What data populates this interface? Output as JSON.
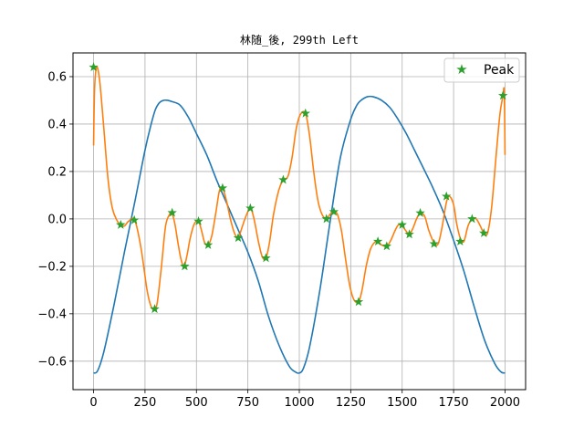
{
  "chart_data": {
    "type": "line",
    "title": "林随_後, 299th Left",
    "xlabel": "",
    "ylabel": "",
    "xlim": [
      -100,
      2100
    ],
    "ylim": [
      -0.72,
      0.7
    ],
    "xticks": [
      0,
      250,
      500,
      750,
      1000,
      1250,
      1500,
      1750,
      2000
    ],
    "yticks": [
      -0.6,
      -0.4,
      -0.2,
      0.0,
      0.2,
      0.4,
      0.6
    ],
    "xtick_labels": [
      "0",
      "250",
      "500",
      "750",
      "1000",
      "1250",
      "1500",
      "1750",
      "2000"
    ],
    "ytick_labels": [
      "−0.6",
      "−0.4",
      "−0.2",
      "0.0",
      "0.2",
      "0.4",
      "0.6"
    ],
    "grid": true,
    "legend": {
      "location": "upper right",
      "entries": [
        "Peak"
      ]
    },
    "colors": {
      "blue": "#1f77b4",
      "orange": "#ff7f0e",
      "green": "#2ca02c"
    },
    "series": [
      {
        "color": "#1f77b4",
        "x": [
          0,
          20,
          50,
          100,
          150,
          200,
          250,
          280,
          300,
          320,
          340,
          360,
          380,
          420,
          460,
          500,
          550,
          600,
          650,
          700,
          750,
          800,
          850,
          900,
          950,
          980,
          1000,
          1020,
          1050,
          1100,
          1150,
          1200,
          1250,
          1280,
          1300,
          1330,
          1360,
          1400,
          1440,
          1480,
          1520,
          1560,
          1600,
          1650,
          1700,
          1750,
          1800,
          1850,
          1900,
          1950,
          1980,
          2000
        ],
        "y": [
          -0.65,
          -0.64,
          -0.56,
          -0.36,
          -0.14,
          0.07,
          0.29,
          0.4,
          0.46,
          0.49,
          0.5,
          0.5,
          0.495,
          0.48,
          0.43,
          0.36,
          0.27,
          0.16,
          0.06,
          -0.04,
          -0.14,
          -0.26,
          -0.41,
          -0.53,
          -0.62,
          -0.645,
          -0.65,
          -0.63,
          -0.54,
          -0.3,
          -0.01,
          0.26,
          0.42,
          0.48,
          0.5,
          0.515,
          0.515,
          0.5,
          0.47,
          0.42,
          0.36,
          0.29,
          0.22,
          0.13,
          0.03,
          -0.09,
          -0.22,
          -0.37,
          -0.51,
          -0.61,
          -0.645,
          -0.65
        ]
      },
      {
        "color": "#ff7f0e",
        "x": [
          0,
          5,
          15,
          30,
          50,
          70,
          90,
          110,
          130,
          150,
          170,
          200,
          230,
          260,
          280,
          297,
          310,
          330,
          350,
          370,
          380,
          395,
          410,
          425,
          440,
          455,
          470,
          490,
          510,
          525,
          540,
          557,
          575,
          595,
          612,
          627,
          645,
          665,
          685,
          703,
          720,
          740,
          762,
          780,
          800,
          820,
          838,
          855,
          875,
          900,
          922,
          945,
          965,
          985,
          1005,
          1030,
          1050,
          1070,
          1090,
          1110,
          1132,
          1150,
          1168,
          1185,
          1205,
          1225,
          1245,
          1265,
          1288,
          1305,
          1325,
          1345,
          1365,
          1382,
          1400,
          1425,
          1445,
          1465,
          1482,
          1500,
          1518,
          1535,
          1552,
          1570,
          1588,
          1610,
          1630,
          1655,
          1675,
          1695,
          1715,
          1730,
          1750,
          1765,
          1782,
          1800,
          1820,
          1840,
          1860,
          1880,
          1897,
          1915,
          1935,
          1955,
          1975,
          1990,
          1995,
          1998,
          2000
        ],
        "y": [
          0.31,
          0.55,
          0.64,
          0.58,
          0.38,
          0.17,
          0.05,
          0.0,
          -0.025,
          -0.03,
          -0.01,
          -0.005,
          -0.12,
          -0.3,
          -0.37,
          -0.38,
          -0.35,
          -0.2,
          -0.03,
          0.02,
          0.026,
          -0.02,
          -0.1,
          -0.17,
          -0.2,
          -0.15,
          -0.08,
          -0.02,
          -0.01,
          -0.05,
          -0.1,
          -0.11,
          -0.07,
          0.03,
          0.12,
          0.13,
          0.08,
          0.0,
          -0.06,
          -0.08,
          -0.04,
          0.01,
          0.045,
          0.0,
          -0.09,
          -0.16,
          -0.165,
          -0.1,
          0.02,
          0.12,
          0.165,
          0.18,
          0.26,
          0.38,
          0.44,
          0.445,
          0.35,
          0.2,
          0.08,
          0.02,
          0.0,
          0.02,
          0.03,
          0.02,
          -0.05,
          -0.17,
          -0.28,
          -0.34,
          -0.35,
          -0.3,
          -0.2,
          -0.13,
          -0.1,
          -0.095,
          -0.11,
          -0.115,
          -0.09,
          -0.05,
          -0.025,
          -0.03,
          -0.05,
          -0.065,
          -0.04,
          0.0,
          0.025,
          0.01,
          -0.05,
          -0.1,
          -0.105,
          -0.03,
          0.07,
          0.095,
          0.06,
          -0.02,
          -0.08,
          -0.095,
          -0.03,
          0.0,
          0.0,
          -0.03,
          -0.06,
          -0.06,
          0.05,
          0.25,
          0.44,
          0.52,
          0.55,
          0.45,
          0.27
        ]
      }
    ],
    "peaks": {
      "name": "Peak",
      "color": "#2ca02c",
      "x": [
        0,
        132,
        198,
        297,
        382,
        443,
        510,
        557,
        627,
        703,
        762,
        838,
        922,
        1030,
        1132,
        1168,
        1288,
        1382,
        1425,
        1500,
        1535,
        1588,
        1655,
        1715,
        1782,
        1840,
        1897,
        1990
      ],
      "y": [
        0.64,
        -0.025,
        -0.005,
        -0.38,
        0.026,
        -0.2,
        -0.01,
        -0.11,
        0.13,
        -0.08,
        0.045,
        -0.165,
        0.165,
        0.445,
        0.0,
        0.03,
        -0.35,
        -0.095,
        -0.115,
        -0.025,
        -0.065,
        0.025,
        -0.105,
        0.095,
        -0.095,
        0.0,
        -0.06,
        0.52
      ]
    }
  }
}
